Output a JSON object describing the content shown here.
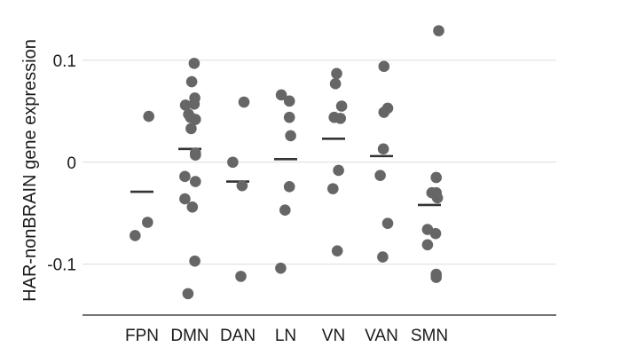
{
  "chart_data": {
    "type": "scatter",
    "title": "",
    "xlabel": "",
    "ylabel": "HAR-nonBRAIN gene expression",
    "ylim": [
      -0.15,
      0.14
    ],
    "yticks": [
      {
        "value": 0.1,
        "label": "0.1"
      },
      {
        "value": 0,
        "label": "0"
      },
      {
        "value": -0.1,
        "label": "-0.1"
      }
    ],
    "grid": true,
    "legend": "none",
    "point_color": "#666666",
    "mean_color": "#333333",
    "categories": [
      "FPN",
      "DMN",
      "DAN",
      "LN",
      "VN",
      "VAN",
      "SMN"
    ],
    "groups": [
      {
        "category": "FPN",
        "mean": -0.029,
        "points": [
          {
            "jitter": 0.55,
            "y": 0.045
          },
          {
            "jitter": 0.45,
            "y": -0.059
          },
          {
            "jitter": -0.55,
            "y": -0.072
          }
        ]
      },
      {
        "category": "DMN",
        "mean": 0.013,
        "points": [
          {
            "jitter": 0.35,
            "y": 0.097
          },
          {
            "jitter": 0.15,
            "y": 0.079
          },
          {
            "jitter": 0.4,
            "y": 0.063
          },
          {
            "jitter": -0.35,
            "y": 0.056
          },
          {
            "jitter": 0.35,
            "y": 0.057
          },
          {
            "jitter": -0.1,
            "y": 0.047
          },
          {
            "jitter": 0.05,
            "y": 0.044
          },
          {
            "jitter": 0.45,
            "y": 0.042
          },
          {
            "jitter": 0.1,
            "y": 0.033
          },
          {
            "jitter": 0.45,
            "y": 0.009
          },
          {
            "jitter": 0.45,
            "y": 0.007
          },
          {
            "jitter": -0.4,
            "y": -0.014
          },
          {
            "jitter": 0.45,
            "y": -0.019
          },
          {
            "jitter": -0.4,
            "y": -0.036
          },
          {
            "jitter": 0.2,
            "y": -0.044
          },
          {
            "jitter": 0.4,
            "y": -0.097
          },
          {
            "jitter": -0.15,
            "y": -0.129
          }
        ]
      },
      {
        "category": "DAN",
        "mean": -0.019,
        "points": [
          {
            "jitter": 0.5,
            "y": 0.059
          },
          {
            "jitter": -0.4,
            "y": 0.0
          },
          {
            "jitter": 0.35,
            "y": -0.023
          },
          {
            "jitter": 0.25,
            "y": -0.112
          }
        ]
      },
      {
        "category": "LN",
        "mean": 0.003,
        "points": [
          {
            "jitter": -0.35,
            "y": 0.066
          },
          {
            "jitter": 0.3,
            "y": 0.06
          },
          {
            "jitter": 0.3,
            "y": 0.044
          },
          {
            "jitter": 0.4,
            "y": 0.026
          },
          {
            "jitter": 0.3,
            "y": -0.024
          },
          {
            "jitter": -0.05,
            "y": -0.047
          },
          {
            "jitter": -0.4,
            "y": -0.104
          }
        ]
      },
      {
        "category": "VN",
        "mean": 0.023,
        "points": [
          {
            "jitter": 0.25,
            "y": 0.087
          },
          {
            "jitter": 0.15,
            "y": 0.077
          },
          {
            "jitter": 0.65,
            "y": 0.055
          },
          {
            "jitter": 0.05,
            "y": 0.044
          },
          {
            "jitter": 0.55,
            "y": 0.043
          },
          {
            "jitter": 0.4,
            "y": -0.008
          },
          {
            "jitter": -0.05,
            "y": -0.026
          },
          {
            "jitter": 0.3,
            "y": -0.087
          }
        ]
      },
      {
        "category": "VAN",
        "mean": 0.006,
        "points": [
          {
            "jitter": 0.2,
            "y": 0.094
          },
          {
            "jitter": 0.5,
            "y": 0.053
          },
          {
            "jitter": 0.2,
            "y": 0.049
          },
          {
            "jitter": 0.15,
            "y": 0.013
          },
          {
            "jitter": -0.1,
            "y": -0.013
          },
          {
            "jitter": 0.5,
            "y": -0.06
          },
          {
            "jitter": 0.1,
            "y": -0.093
          }
        ]
      },
      {
        "category": "SMN",
        "mean": -0.042,
        "points": [
          {
            "jitter": 0.75,
            "y": 0.129
          },
          {
            "jitter": 0.55,
            "y": -0.015
          },
          {
            "jitter": 0.2,
            "y": -0.03
          },
          {
            "jitter": 0.55,
            "y": -0.03
          },
          {
            "jitter": 0.65,
            "y": -0.035
          },
          {
            "jitter": -0.15,
            "y": -0.066
          },
          {
            "jitter": 0.5,
            "y": -0.07
          },
          {
            "jitter": -0.15,
            "y": -0.081
          },
          {
            "jitter": 0.55,
            "y": -0.11
          },
          {
            "jitter": 0.55,
            "y": -0.113
          }
        ]
      }
    ]
  }
}
